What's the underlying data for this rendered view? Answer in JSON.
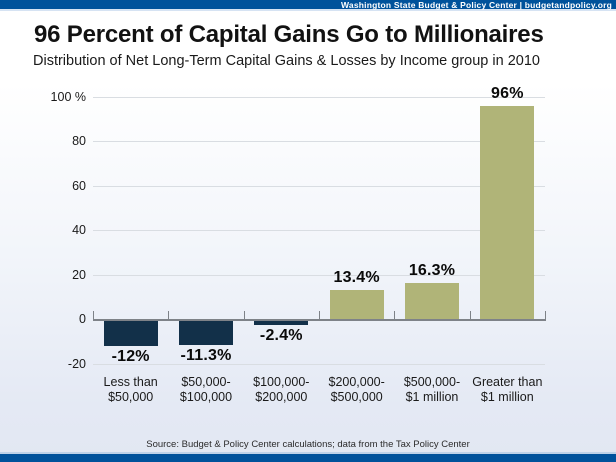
{
  "header": {
    "brand": "Washington State Budget & Policy Center | budgetandpolicy.org"
  },
  "title": "96 Percent of Capital Gains Go to Millionaires",
  "subtitle": "Distribution of Net Long-Term Capital Gains & Losses by Income group in 2010",
  "footer": {
    "source": "Source: Budget & Policy Center calculations; data from the Tax Policy Center"
  },
  "colors": {
    "accent_blue": "#00529b",
    "positive_bar": "#b0b478",
    "negative_bar": "#123049",
    "gridline": "#d9dde2",
    "axis": "#7e8288"
  },
  "chart_data": {
    "type": "bar",
    "title": "96 Percent of Capital Gains Go to Millionaires",
    "subtitle": "Distribution of Net Long-Term Capital Gains & Losses by Income group in 2010",
    "categories": [
      "Less than\n$50,000",
      "$50,000-\n$100,000",
      "$100,000-\n$200,000",
      "$200,000-\n$500,000",
      "$500,000-\n$1 million",
      "Greater than\n$1 million"
    ],
    "values": [
      -12,
      -11.3,
      -2.4,
      13.4,
      16.3,
      96
    ],
    "value_labels": [
      "-12%",
      "-11.3%",
      "-2.4%",
      "13.4%",
      "16.3%",
      "96%"
    ],
    "y_ticks": [
      {
        "value": 100,
        "label": "100 %"
      },
      {
        "value": 80,
        "label": "80"
      },
      {
        "value": 60,
        "label": "60"
      },
      {
        "value": 40,
        "label": "40"
      },
      {
        "value": 20,
        "label": "20"
      },
      {
        "value": 0,
        "label": "0"
      },
      {
        "value": -20,
        "label": "-20"
      }
    ],
    "ylim": [
      -20,
      100
    ],
    "xlabel": "",
    "ylabel": "",
    "grid": true,
    "legend": null
  }
}
